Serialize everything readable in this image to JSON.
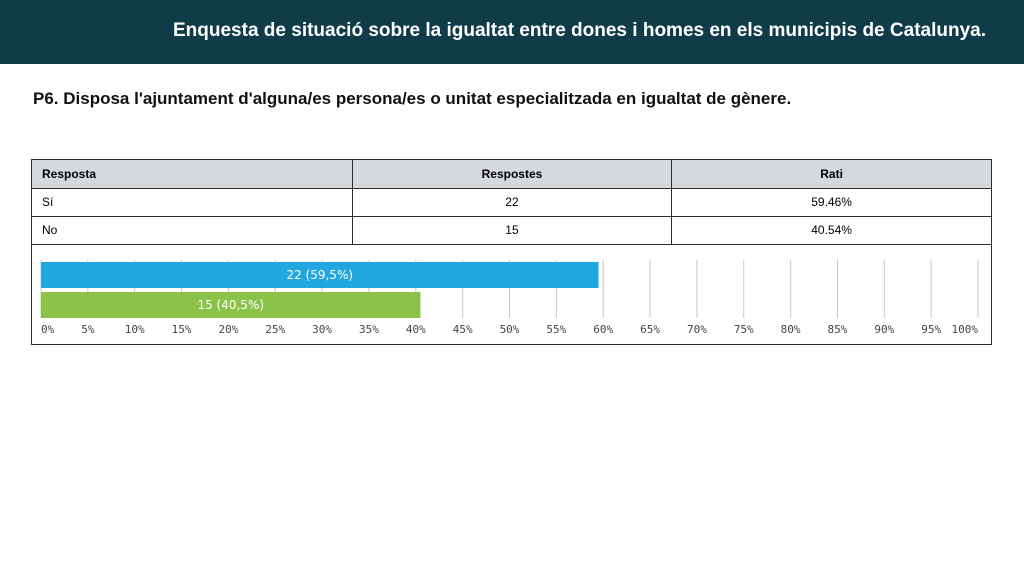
{
  "header": {
    "title": "Enquesta de situació sobre la  igualtat entre dones i homes en els municipis de Catalunya."
  },
  "question": "P6. Disposa l'ajuntament d'alguna/es persona/es o unitat especialitzada en igualtat de gènere.",
  "table": {
    "headers": [
      "Resposta",
      "Respostes",
      "Rati"
    ],
    "rows": [
      [
        "Sí",
        "22",
        "59.46%"
      ],
      [
        "No",
        "15",
        "40.54%"
      ]
    ]
  },
  "chart_data": {
    "type": "bar",
    "orientation": "horizontal",
    "categories": [
      "Sí",
      "No"
    ],
    "values": [
      59.5,
      40.5
    ],
    "counts": [
      22,
      15
    ],
    "data_labels": [
      "22 (59,5%)",
      "15 (40,5%)"
    ],
    "colors": [
      "#21a6de",
      "#8bc34a"
    ],
    "xlim": [
      0,
      100
    ],
    "xticks": [
      "0%",
      "5%",
      "10%",
      "15%",
      "20%",
      "25%",
      "30%",
      "35%",
      "40%",
      "45%",
      "50%",
      "55%",
      "60%",
      "65%",
      "70%",
      "75%",
      "80%",
      "85%",
      "90%",
      "95%",
      "100%"
    ],
    "grid": true
  }
}
